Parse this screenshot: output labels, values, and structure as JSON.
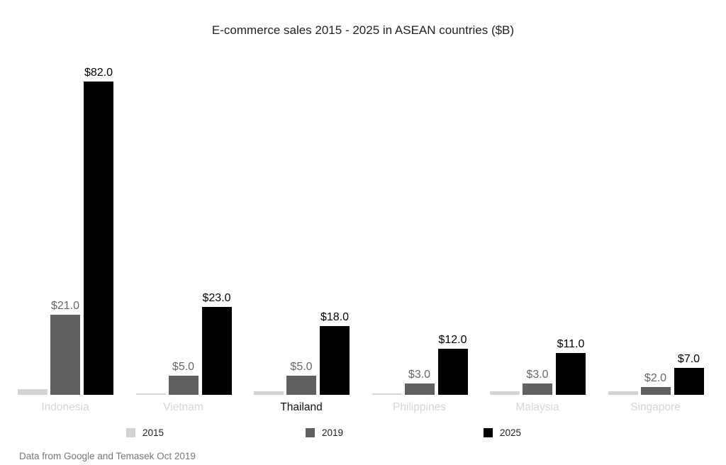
{
  "title": "E-commerce sales 2015 - 2025 in ASEAN countries ($B)",
  "source": "Data from Google and Temasek Oct 2019",
  "colors": {
    "2015": "#d3d3d3",
    "2019": "#606060",
    "2025": "#000000"
  },
  "legend": [
    {
      "label": "2015",
      "color": "#d3d3d3"
    },
    {
      "label": "2019",
      "color": "#606060"
    },
    {
      "label": "2025",
      "color": "#000000"
    }
  ],
  "chart_data": {
    "type": "bar",
    "title": "E-commerce sales 2015 - 2025 in ASEAN countries ($B)",
    "xlabel": "",
    "ylabel": "",
    "categories": [
      "Indonesia",
      "Vietnam",
      "Thailand",
      "Philippines",
      "Malaysia",
      "Singapore"
    ],
    "highlighted_category": "Thailand",
    "series": [
      {
        "name": "2015",
        "color": "#d3d3d3",
        "values": [
          1.5,
          0.3,
          0.9,
          0.3,
          1.0,
          1.0
        ],
        "labels": [
          "",
          "",
          "",
          "",
          "",
          ""
        ]
      },
      {
        "name": "2019",
        "color": "#606060",
        "values": [
          21.0,
          5.0,
          5.0,
          3.0,
          3.0,
          2.0
        ],
        "labels": [
          "$21.0",
          "$5.0",
          "$5.0",
          "$3.0",
          "$3.0",
          "$2.0"
        ]
      },
      {
        "name": "2025",
        "color": "#000000",
        "values": [
          82.0,
          23.0,
          18.0,
          12.0,
          11.0,
          7.0
        ],
        "labels": [
          "$82.0",
          "$23.0",
          "$18.0",
          "$12.0",
          "$11.0",
          "$7.0"
        ]
      }
    ],
    "ylim": [
      0,
      82
    ],
    "grid": false,
    "legend_position": "bottom",
    "annotation": "Data from Google and Temasek Oct 2019"
  }
}
